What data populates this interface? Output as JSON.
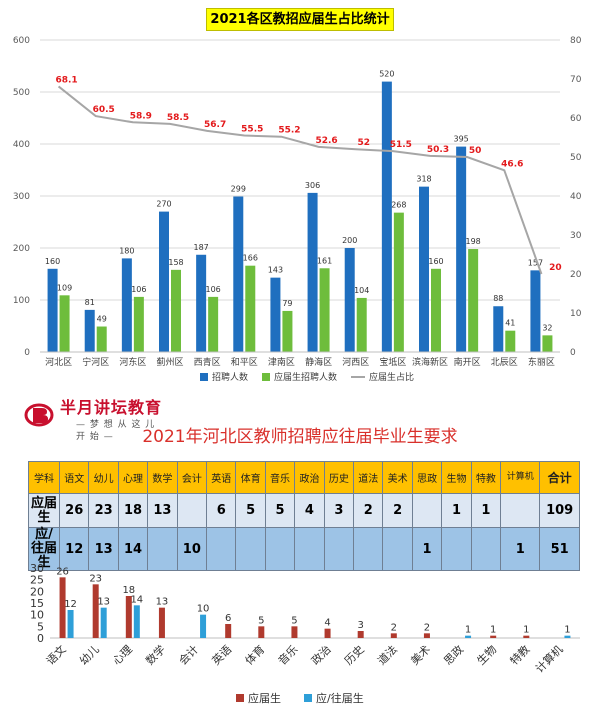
{
  "chart_data": [
    {
      "type": "bar",
      "title": "2021各区教招应届生占比统计",
      "categories": [
        "河北区",
        "宁河区",
        "河东区",
        "蓟州区",
        "西青区",
        "和平区",
        "津南区",
        "静海区",
        "河西区",
        "宝坻区",
        "滨海新区",
        "南开区",
        "北辰区",
        "东丽区"
      ],
      "series": [
        {
          "name": "招聘人数",
          "values": [
            160,
            81,
            180,
            270,
            187,
            299,
            143,
            306,
            200,
            520,
            318,
            395,
            88,
            157
          ],
          "color": "#1f6fbf"
        },
        {
          "name": "应届生招聘人数",
          "values": [
            109,
            49,
            106,
            158,
            106,
            166,
            79,
            161,
            104,
            268,
            160,
            198,
            41,
            32
          ],
          "color": "#6ebd3c"
        },
        {
          "name": "应届生占比",
          "type": "line",
          "axis": "right",
          "values": [
            68.1,
            60.5,
            58.9,
            58.5,
            56.7,
            55.5,
            55.2,
            52.6,
            52,
            51.5,
            50.3,
            50,
            46.6,
            20
          ],
          "color": "#a6a6a6"
        }
      ],
      "ylim": [
        0,
        600
      ],
      "yticks": [
        "0",
        "100",
        "200",
        "300",
        "400",
        "500",
        "600"
      ],
      "y2lim": [
        0,
        80
      ],
      "y2ticks": [
        "0",
        "10",
        "20",
        "30",
        "40",
        "50",
        "60",
        "70",
        "80"
      ],
      "legend_position": "bottom",
      "grid": true
    },
    {
      "type": "bar",
      "title": "2021年河北区教师招聘应往届毕业生要求",
      "categories": [
        "语文",
        "幼儿",
        "心理",
        "数学",
        "会计",
        "英语",
        "体育",
        "音乐",
        "政治",
        "历史",
        "道法",
        "美术",
        "思政",
        "生物",
        "特教",
        "计算机"
      ],
      "series": [
        {
          "name": "应届生",
          "values": [
            26,
            23,
            18,
            13,
            null,
            6,
            5,
            5,
            4,
            3,
            2,
            2,
            null,
            1,
            1,
            null
          ],
          "color": "#b03a2e"
        },
        {
          "name": "应/往届生",
          "values": [
            12,
            13,
            14,
            null,
            10,
            null,
            null,
            null,
            null,
            null,
            null,
            null,
            1,
            null,
            null,
            1
          ],
          "color": "#2e9fd8"
        }
      ],
      "ylim": [
        0,
        30
      ],
      "yticks": [
        "0",
        "5",
        "10",
        "15",
        "20",
        "25",
        "30"
      ],
      "legend_position": "bottom"
    }
  ],
  "logo": {
    "name": "半月讲坛教育",
    "slogan": "— 梦 想 从 这 儿 开 始 —"
  },
  "table": {
    "header": [
      "学科",
      "语文",
      "幼儿",
      "心理",
      "数学",
      "会计",
      "英语",
      "体育",
      "音乐",
      "政治",
      "历史",
      "道法",
      "美术",
      "思政",
      "生物",
      "特教",
      "计算机",
      "合计"
    ],
    "rows": [
      {
        "label": "应届生",
        "cells": [
          "26",
          "23",
          "18",
          "13",
          "",
          "6",
          "5",
          "5",
          "4",
          "3",
          "2",
          "2",
          "",
          "1",
          "1",
          "",
          "109"
        ]
      },
      {
        "label": "应/往届生",
        "cells": [
          "12",
          "13",
          "14",
          "",
          "10",
          "",
          "",
          "",
          "",
          "",
          "",
          "",
          "1",
          "",
          "",
          "1",
          "51"
        ]
      }
    ]
  }
}
